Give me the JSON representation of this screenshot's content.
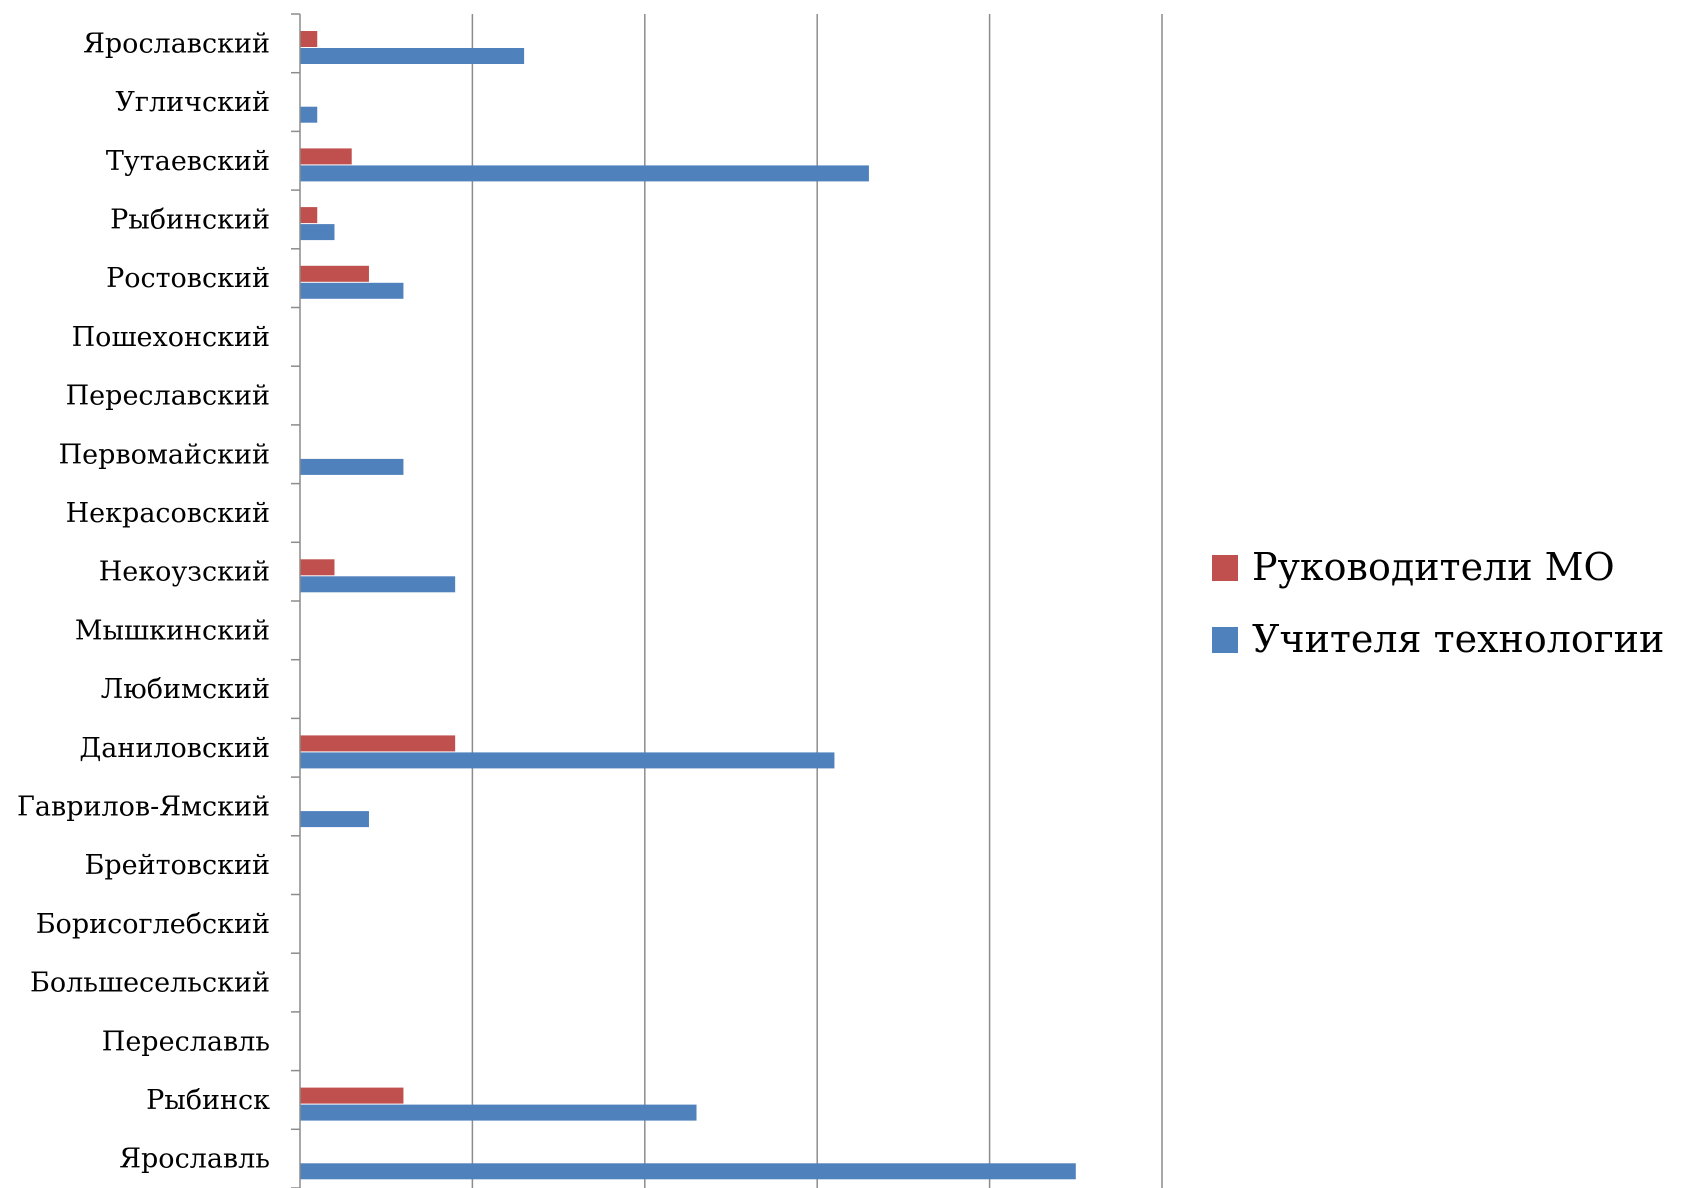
{
  "chart_data": {
    "type": "bar",
    "orientation": "horizontal",
    "categories": [
      "Ярославль",
      "Рыбинск",
      "Переславль",
      "Большесельский",
      "Борисоглебский",
      "Брейтовский",
      "Гаврилов-Ямский",
      "Даниловский",
      "Любимский",
      "Мышкинский",
      "Некоузский",
      "Некрасовский",
      "Первомайский",
      "Переславский",
      "Пошехонский",
      "Ростовский",
      "Рыбинский",
      "Тутаевский",
      "Угличский",
      "Ярославский"
    ],
    "series": [
      {
        "name": "Руководители МО",
        "color": "#c0504d",
        "values": [
          0,
          6,
          0,
          0,
          0,
          0,
          0,
          9,
          0,
          0,
          2,
          0,
          0,
          0,
          0,
          4,
          1,
          3,
          0,
          1
        ]
      },
      {
        "name": "Учителя технологии",
        "color": "#4f81bd",
        "values": [
          45,
          23,
          0,
          0,
          0,
          0,
          4,
          31,
          0,
          0,
          9,
          0,
          6,
          0,
          0,
          6,
          2,
          33,
          1,
          13
        ]
      }
    ],
    "xlim": [
      0,
      50
    ],
    "x_grid_step": 10,
    "grid": true,
    "legend": "right",
    "title": "",
    "xlabel": "",
    "ylabel": ""
  }
}
